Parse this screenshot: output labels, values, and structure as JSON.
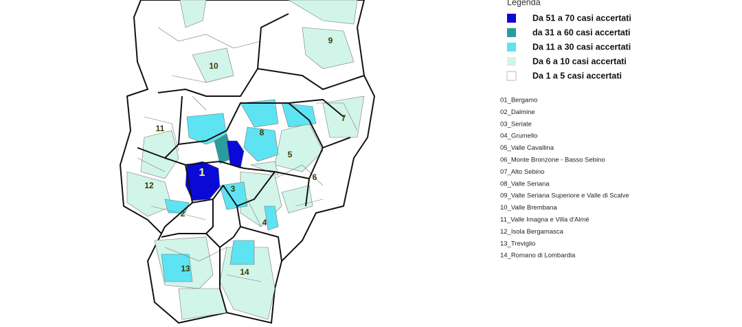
{
  "legend": {
    "title": "Legenda",
    "items": [
      {
        "label": "Da 51 a 70 casi accertati",
        "color": "#0a0ad6"
      },
      {
        "label": "da 31 a 60 casi accertati",
        "color": "#2b9c9c"
      },
      {
        "label": "Da 11 a 30 casi accertati",
        "color": "#5ee3f2"
      },
      {
        "label": "Da 6 a 10 casi accertati",
        "color": "#d2f5ea"
      },
      {
        "label": "Da 1 a 5 casi accertati",
        "color": "#ffffff"
      }
    ]
  },
  "districts": [
    "01_Bergamo",
    "02_Dalmine",
    "03_Seriate",
    "04_Grumello",
    "05_Valle Cavallina",
    "06_Monte Bronzone - Basso Sebino",
    "07_Alto Sebino",
    "08_Valle Seriana",
    "09_Valle Seriana Superiore e Valle di Scalve",
    "10_Valle Brembana",
    "11_Valle Imagna e Villa d'Almè",
    "12_Isola Bergamasca",
    "13_Treviglio",
    "14_Romano di Lombardia"
  ],
  "map_labels": [
    "10",
    "9",
    "11",
    "8",
    "7",
    "5",
    "1",
    "6",
    "12",
    "3",
    "2",
    "4",
    "13",
    "14"
  ]
}
